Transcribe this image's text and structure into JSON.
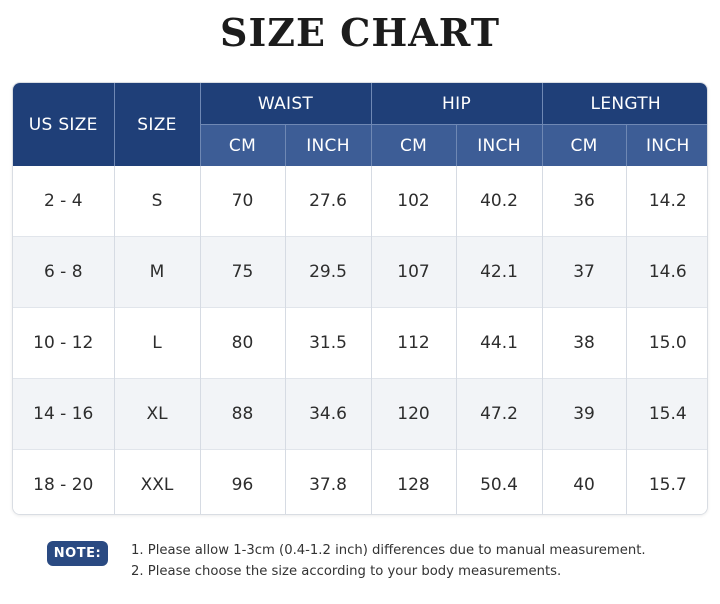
{
  "title": "SIZE CHART",
  "table": {
    "headers": {
      "us_size": "US SIZE",
      "size": "SIZE",
      "groups": [
        "WAIST",
        "HIP",
        "LENGTH"
      ],
      "units": [
        "CM",
        "INCH",
        "CM",
        "INCH",
        "CM",
        "INCH"
      ]
    },
    "rows": [
      [
        "2 - 4",
        "S",
        "70",
        "27.6",
        "102",
        "40.2",
        "36",
        "14.2"
      ],
      [
        "6 - 8",
        "M",
        "75",
        "29.5",
        "107",
        "42.1",
        "37",
        "14.6"
      ],
      [
        "10 - 12",
        "L",
        "80",
        "31.5",
        "112",
        "44.1",
        "38",
        "15.0"
      ],
      [
        "14 - 16",
        "XL",
        "88",
        "34.6",
        "120",
        "47.2",
        "39",
        "15.4"
      ],
      [
        "18 - 20",
        "XXL",
        "96",
        "37.8",
        "128",
        "50.4",
        "40",
        "15.7"
      ]
    ]
  },
  "note": {
    "label": "NOTE:",
    "lines": [
      "1. Please allow 1-3cm (0.4-1.2 inch) differences due to manual measurement.",
      "2. Please choose the size according to your body measurements."
    ]
  },
  "colors": {
    "header_dark": "#1f3f78",
    "header_light": "#3d5d96",
    "row_alt": "#f2f4f7"
  }
}
